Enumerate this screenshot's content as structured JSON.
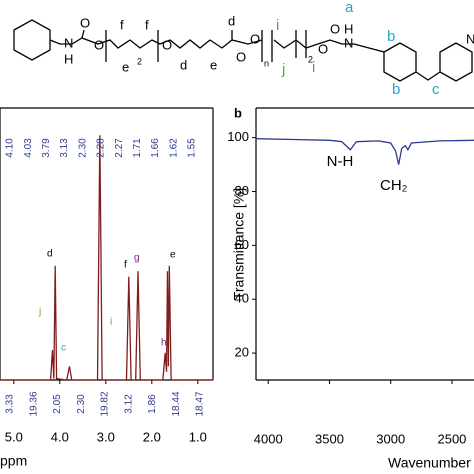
{
  "structure": {
    "labels": [
      "N",
      "H",
      "O",
      "O",
      "f",
      "f",
      "e",
      "2",
      "O",
      "d",
      "e",
      "d",
      "O",
      "O",
      "n",
      "i",
      "j",
      "2",
      "i",
      "O",
      "O",
      "N",
      "H",
      "a",
      "b",
      "b",
      "c",
      "N"
    ]
  },
  "chart_data": [
    {
      "type": "line",
      "xlabel": "ppm",
      "x": [
        5.3,
        4.2,
        4.16,
        4.13,
        4.1,
        4.07,
        3.85,
        3.79,
        3.74,
        3.18,
        3.13,
        3.08,
        2.55,
        2.5,
        2.45,
        2.35,
        2.3,
        2.25,
        1.76,
        1.71,
        1.68,
        1.66,
        1.64,
        1.62,
        1.58,
        0.67
      ],
      "series": [
        {
          "color": "#7f1d1d",
          "values": [
            0,
            0,
            11,
            0.5,
            42,
            0.5,
            0,
            5,
            0,
            0,
            90,
            0,
            0,
            38,
            0,
            0,
            40,
            0,
            0,
            10,
            3,
            40,
            5,
            42,
            0,
            0
          ]
        }
      ],
      "xlim": [
        5.3,
        0.67
      ],
      "ylim": [
        0,
        100
      ],
      "xticks": [
        {
          "value": 5,
          "label": "5.0"
        },
        {
          "value": 4,
          "label": "4.0"
        },
        {
          "value": 3,
          "label": "3.0"
        },
        {
          "value": 2,
          "label": "2.0"
        },
        {
          "value": 1,
          "label": "1.0"
        }
      ],
      "peak_labels": [
        "j",
        "d",
        "c",
        "i",
        "f",
        "g",
        "h",
        "e"
      ],
      "shift_labels": [
        "4.10",
        "4.03",
        "3.79",
        "3.13",
        "2.30",
        "2.28",
        "2.27",
        "1.71",
        "1.66",
        "1.62",
        "1.55"
      ],
      "integral_labels": [
        "3.33",
        "19.36",
        "2.05",
        "2.30",
        "19.82",
        "3.12",
        "1.86",
        "18.44",
        "18.47"
      ]
    },
    {
      "type": "line",
      "panel": "b",
      "xlabel": "Wavenumber",
      "ylabel": "Transmittance [%]",
      "x": [
        4100,
        3800,
        3500,
        3400,
        3330,
        3280,
        3100,
        3000,
        2960,
        2935,
        2910,
        2880,
        2860,
        2830,
        2600,
        2320
      ],
      "series": [
        {
          "color": "#2b3a8f",
          "values": [
            99.6,
            99.3,
            99,
            98.5,
            95.5,
            98.5,
            98.8,
            98,
            95,
            90,
            96,
            97,
            95.5,
            98,
            98.8,
            99
          ]
        }
      ],
      "xlim": [
        4100,
        2320
      ],
      "ylim": [
        10,
        111
      ],
      "xticks": [
        4000,
        3500,
        3000,
        2500
      ],
      "yticks": [
        20,
        40,
        60,
        80,
        100
      ],
      "annotations": [
        "N-H",
        "CH₂"
      ]
    }
  ]
}
